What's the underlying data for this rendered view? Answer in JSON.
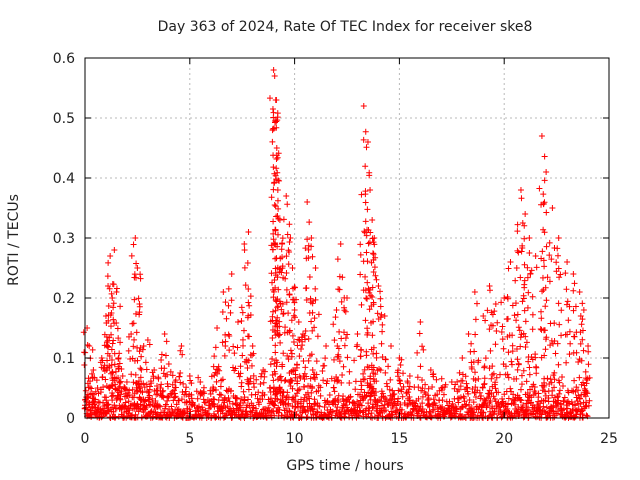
{
  "chart_data": {
    "type": "scatter",
    "title": "Day 363 of 2024, Rate Of TEC Index for receiver ske8",
    "xlabel": "GPS time / hours",
    "ylabel": "ROTI / TECUs",
    "xlim": [
      0,
      25
    ],
    "ylim": [
      0,
      0.6
    ],
    "xticks": [
      0,
      5,
      10,
      15,
      20,
      25
    ],
    "xtick_labels": [
      "0",
      "5",
      "10",
      "15",
      "20",
      "25"
    ],
    "yticks": [
      0,
      0.1,
      0.2,
      0.3,
      0.4,
      0.5,
      0.6
    ],
    "ytick_labels": [
      "0",
      "0.1",
      "0.2",
      "0.3",
      "0.4",
      "0.5",
      "0.6"
    ],
    "grid": true,
    "marker": "+",
    "color": "#ff0000",
    "series": [
      {
        "name": "ROTI",
        "x": [
          0.0,
          0.1,
          0.2,
          0.4,
          0.6,
          0.8,
          1.0,
          1.1,
          1.2,
          1.3,
          1.4,
          1.5,
          1.6,
          1.8,
          2.0,
          2.2,
          2.4,
          2.5,
          2.6,
          2.8,
          3.0,
          3.3,
          3.6,
          3.8,
          4.0,
          4.3,
          4.6,
          5.0,
          5.5,
          6.0,
          6.3,
          6.6,
          7.0,
          7.3,
          7.6,
          7.8,
          8.0,
          8.5,
          9.0,
          9.05,
          9.1,
          9.15,
          9.2,
          9.3,
          9.4,
          9.6,
          9.8,
          9.9,
          10.0,
          10.2,
          10.4,
          10.6,
          10.8,
          11.0,
          11.5,
          12.0,
          12.2,
          12.5,
          13.0,
          13.3,
          13.5,
          13.6,
          13.7,
          13.8,
          14.0,
          14.3,
          14.6,
          15.0,
          15.5,
          16.0,
          16.5,
          17.0,
          17.5,
          18.0,
          18.3,
          18.6,
          19.0,
          19.3,
          19.6,
          20.0,
          20.3,
          20.6,
          20.8,
          21.0,
          21.2,
          21.5,
          21.8,
          22.0,
          22.3,
          22.6,
          23.0,
          23.3,
          23.6,
          23.8,
          24.0
        ],
        "y": [
          0.03,
          0.15,
          0.12,
          0.08,
          0.05,
          0.1,
          0.17,
          0.22,
          0.27,
          0.2,
          0.28,
          0.21,
          0.1,
          0.07,
          0.06,
          0.14,
          0.3,
          0.25,
          0.19,
          0.12,
          0.13,
          0.08,
          0.05,
          0.14,
          0.09,
          0.06,
          0.12,
          0.07,
          0.06,
          0.04,
          0.15,
          0.21,
          0.24,
          0.16,
          0.29,
          0.31,
          0.12,
          0.08,
          0.58,
          0.57,
          0.53,
          0.45,
          0.38,
          0.33,
          0.29,
          0.37,
          0.3,
          0.25,
          0.18,
          0.16,
          0.14,
          0.36,
          0.3,
          0.25,
          0.12,
          0.18,
          0.29,
          0.2,
          0.14,
          0.52,
          0.46,
          0.38,
          0.33,
          0.3,
          0.22,
          0.17,
          0.12,
          0.1,
          0.07,
          0.16,
          0.08,
          0.05,
          0.06,
          0.1,
          0.14,
          0.21,
          0.17,
          0.22,
          0.19,
          0.2,
          0.26,
          0.25,
          0.38,
          0.34,
          0.3,
          0.27,
          0.47,
          0.41,
          0.35,
          0.3,
          0.26,
          0.24,
          0.21,
          0.18,
          0.12
        ],
        "baseline_band": [
          0.0,
          0.05
        ]
      }
    ]
  }
}
